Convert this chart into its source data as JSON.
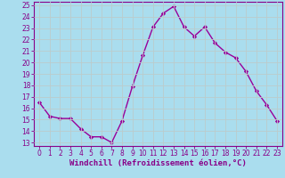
{
  "x": [
    0,
    1,
    2,
    3,
    4,
    5,
    6,
    7,
    8,
    9,
    10,
    11,
    12,
    13,
    14,
    15,
    16,
    17,
    18,
    19,
    20,
    21,
    22,
    23
  ],
  "y": [
    16.5,
    15.3,
    15.1,
    15.1,
    14.2,
    13.5,
    13.5,
    13.0,
    14.9,
    17.9,
    20.6,
    23.1,
    24.3,
    24.9,
    23.1,
    22.3,
    23.1,
    21.7,
    20.9,
    20.4,
    19.2,
    17.5,
    16.3,
    14.9
  ],
  "line_color": "#990099",
  "marker": "D",
  "markersize": 2.2,
  "linewidth": 1.0,
  "bg_color": "#aaddee",
  "grid_color": "#bbcccc",
  "xlabel": "Windchill (Refroidissement éolien,°C)",
  "xlabel_fontsize": 6.5,
  "ylim_min": 13,
  "ylim_max": 25,
  "xlim_min": -0.5,
  "xlim_max": 23.5,
  "yticks": [
    13,
    14,
    15,
    16,
    17,
    18,
    19,
    20,
    21,
    22,
    23,
    24,
    25
  ],
  "xticks": [
    0,
    1,
    2,
    3,
    4,
    5,
    6,
    7,
    8,
    9,
    10,
    11,
    12,
    13,
    14,
    15,
    16,
    17,
    18,
    19,
    20,
    21,
    22,
    23
  ],
  "tick_fontsize": 5.5,
  "axis_color": "#880088",
  "spine_color": "#880088"
}
